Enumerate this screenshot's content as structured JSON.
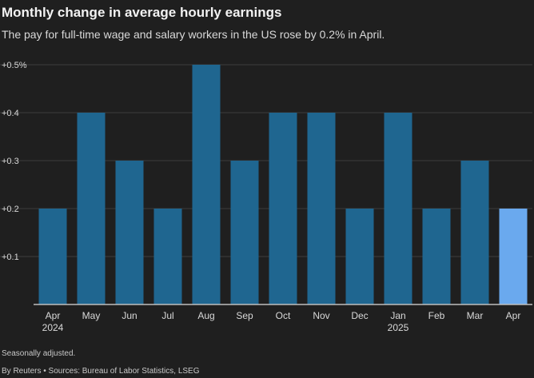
{
  "header": {
    "title": "Monthly change in average hourly earnings",
    "subtitle": "The pay for full-time wage and salary workers in the US rose by 0.2% in April."
  },
  "footer": {
    "note": "Seasonally adjusted.",
    "source": "By Reuters • Sources: Bureau of Labor Statistics, LSEG"
  },
  "colors": {
    "background": "#1f1f1f",
    "bar": "#1f6690",
    "highlight_bar": "#6aa9ee",
    "grid": "#3c3c3c",
    "axis": "#bdbdbd",
    "text": "#d9d9d9"
  },
  "chart_data": {
    "type": "bar",
    "title": "Monthly change in average hourly earnings",
    "subtitle": "The pay for full-time wage and salary workers in the US rose by 0.2% in April.",
    "categories": [
      "Apr",
      "May",
      "Jun",
      "Jul",
      "Aug",
      "Sep",
      "Oct",
      "Nov",
      "Dec",
      "Jan",
      "Feb",
      "Mar",
      "Apr"
    ],
    "category_sublabels": [
      "2024",
      "",
      "",
      "",
      "",
      "",
      "",
      "",
      "",
      "2025",
      "",
      "",
      ""
    ],
    "values": [
      0.2,
      0.4,
      0.3,
      0.2,
      0.5,
      0.3,
      0.4,
      0.4,
      0.2,
      0.4,
      0.2,
      0.3,
      0.2
    ],
    "highlight_index": 12,
    "yticks": [
      0.1,
      0.2,
      0.3,
      0.4,
      0.5
    ],
    "ytick_labels": [
      "+0.1",
      "+0.2",
      "+0.3",
      "+0.4",
      "+0.5%"
    ],
    "ylim": [
      0,
      0.5
    ],
    "grid": true,
    "xlabel": "",
    "ylabel": ""
  }
}
